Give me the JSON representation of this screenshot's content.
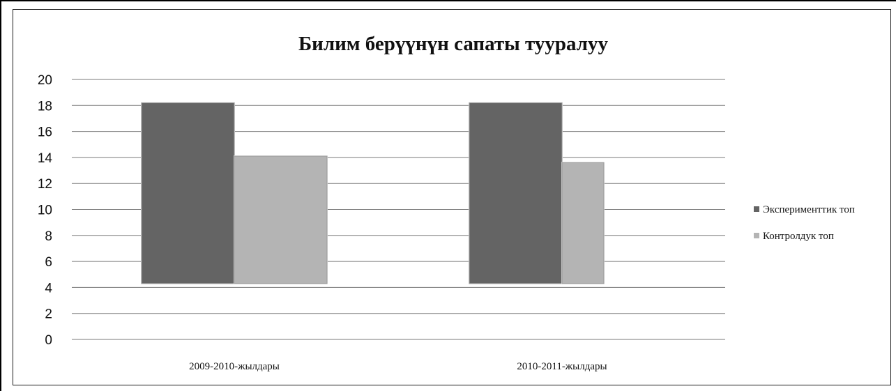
{
  "chart_data": {
    "type": "bar",
    "title": "Билим берүүнүн сапаты тууралуу",
    "xlabel": "",
    "ylabel": "",
    "categories": [
      "2009-2010-жылдары",
      "2010-2011-жылдары"
    ],
    "series": [
      {
        "name": "Эксперименттик топ",
        "values": [
          18.2,
          18.2
        ],
        "color": "#646464"
      },
      {
        "name": "Контролдук топ",
        "values": [
          14.1,
          13.6
        ],
        "color": "#b4b4b4"
      }
    ],
    "ylim": [
      0,
      20
    ],
    "yticks": [
      "0",
      "2",
      "4",
      "6",
      "8",
      "10",
      "12",
      "14",
      "16",
      "18",
      "20"
    ],
    "bar_base": 4.3,
    "grid": true,
    "legend_position": "right"
  }
}
